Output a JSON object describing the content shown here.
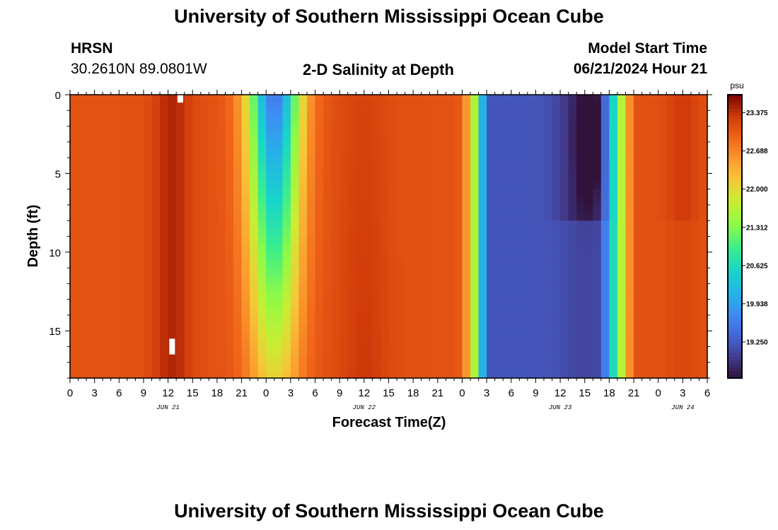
{
  "page": {
    "title": "University of Southern Mississippi Ocean Cube",
    "footer_title": "University of Southern Mississippi Ocean Cube"
  },
  "station": {
    "name": "HRSN",
    "coords": "30.2610N  89.0801W"
  },
  "plot_title": "2-D Salinity at Depth",
  "model": {
    "label": "Model Start Time",
    "value": "06/21/2024 Hour 21"
  },
  "chart_data": {
    "type": "heatmap",
    "title": "2-D Salinity at Depth",
    "xlabel": "Forecast Time(Z)",
    "ylabel": "Depth (ft)",
    "x_tick_labels": [
      "0",
      "3",
      "6",
      "9",
      "12",
      "15",
      "18",
      "21",
      "0",
      "3",
      "6",
      "9",
      "12",
      "15",
      "18",
      "21",
      "0",
      "3",
      "6",
      "9",
      "12",
      "15",
      "18",
      "21",
      "0",
      "3",
      "6"
    ],
    "x_range_hours": [
      0,
      78
    ],
    "date_labels": [
      {
        "text": "JUN 21",
        "hour": 12
      },
      {
        "text": "JUN 22",
        "hour": 36
      },
      {
        "text": "JUN 23",
        "hour": 60
      },
      {
        "text": "JUN 24",
        "hour": 75
      }
    ],
    "y_ticks": [
      0,
      5,
      10,
      15
    ],
    "y_tick_labels": [
      "0",
      "5",
      "10",
      "15"
    ],
    "y_range_ft": [
      0,
      18
    ],
    "colorbar": {
      "unit": "psu",
      "range": [
        18.6,
        23.7
      ],
      "tick_values": [
        23.375,
        22.688,
        22.0,
        21.312,
        20.625,
        19.938,
        19.25
      ],
      "tick_labels": [
        "23.375",
        "22.688",
        "22.000",
        "21.312",
        "20.625",
        "19.938",
        "19.250"
      ]
    },
    "hour_step": 1,
    "depth_step_ft": 0.5,
    "dry_cells": [
      {
        "hour": 13.5,
        "depth_from": 0,
        "depth_to": 0.5
      },
      {
        "hour": 12.5,
        "depth_from": 15.5,
        "depth_to": 16.5
      }
    ]
  }
}
